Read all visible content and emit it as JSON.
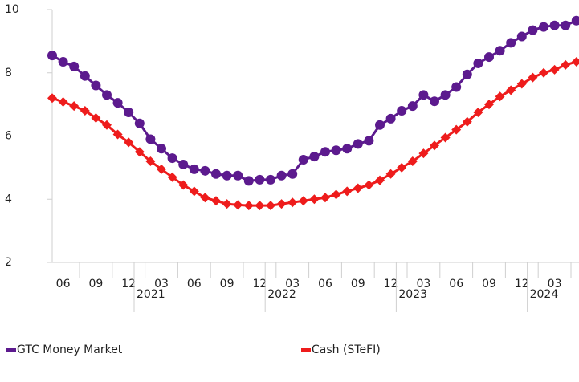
{
  "chart_data": {
    "type": "line",
    "categories": [
      null,
      "06",
      null,
      null,
      "09",
      null,
      null,
      "12",
      null,
      null,
      "03",
      null,
      null,
      "06",
      null,
      null,
      "09",
      null,
      null,
      "12",
      null,
      null,
      "03",
      null,
      null,
      "06",
      null,
      null,
      "09",
      null,
      null,
      "12",
      null,
      null,
      "03",
      null,
      null,
      "06",
      null,
      null,
      "09",
      null,
      null,
      "12",
      null,
      null,
      "03",
      null,
      null
    ],
    "year_labels": [
      null,
      null,
      null,
      null,
      null,
      null,
      null,
      null,
      "2021",
      null,
      null,
      null,
      null,
      null,
      null,
      null,
      null,
      null,
      null,
      null,
      "2022",
      null,
      null,
      null,
      null,
      null,
      null,
      null,
      null,
      null,
      null,
      null,
      "2023",
      null,
      null,
      null,
      null,
      null,
      null,
      null,
      null,
      null,
      null,
      null,
      "2024",
      null,
      null,
      null,
      null
    ],
    "series": [
      {
        "name": "GTC Money Market",
        "color": "#5c1a8e",
        "marker": "circle",
        "values": [
          8.55,
          8.35,
          8.2,
          7.9,
          7.6,
          7.3,
          7.05,
          6.75,
          6.4,
          5.9,
          5.6,
          5.3,
          5.1,
          4.95,
          4.9,
          4.8,
          4.75,
          4.75,
          4.58,
          4.62,
          4.62,
          4.75,
          4.8,
          5.25,
          5.35,
          5.5,
          5.55,
          5.6,
          5.75,
          5.85,
          6.35,
          6.55,
          6.8,
          6.95,
          7.3,
          7.1,
          7.3,
          7.55,
          7.95,
          8.3,
          8.5,
          8.7,
          8.95,
          9.15,
          9.35,
          9.45,
          9.5,
          9.5,
          9.65
        ]
      },
      {
        "name": "Cash (STeFI)",
        "color": "#ee1c1c",
        "marker": "diamond",
        "values": [
          7.2,
          7.08,
          6.95,
          6.8,
          6.57,
          6.35,
          6.05,
          5.8,
          5.5,
          5.2,
          4.95,
          4.7,
          4.45,
          4.25,
          4.05,
          3.95,
          3.85,
          3.82,
          3.8,
          3.8,
          3.8,
          3.85,
          3.9,
          3.95,
          4.0,
          4.05,
          4.15,
          4.25,
          4.35,
          4.45,
          4.6,
          4.8,
          5.0,
          5.2,
          5.45,
          5.7,
          5.95,
          6.2,
          6.45,
          6.75,
          7.0,
          7.25,
          7.45,
          7.65,
          7.85,
          8.0,
          8.1,
          8.25,
          8.35
        ]
      }
    ],
    "ylim": [
      2,
      10
    ],
    "yticks": [
      2,
      4,
      6,
      8,
      10
    ],
    "grid": false
  }
}
